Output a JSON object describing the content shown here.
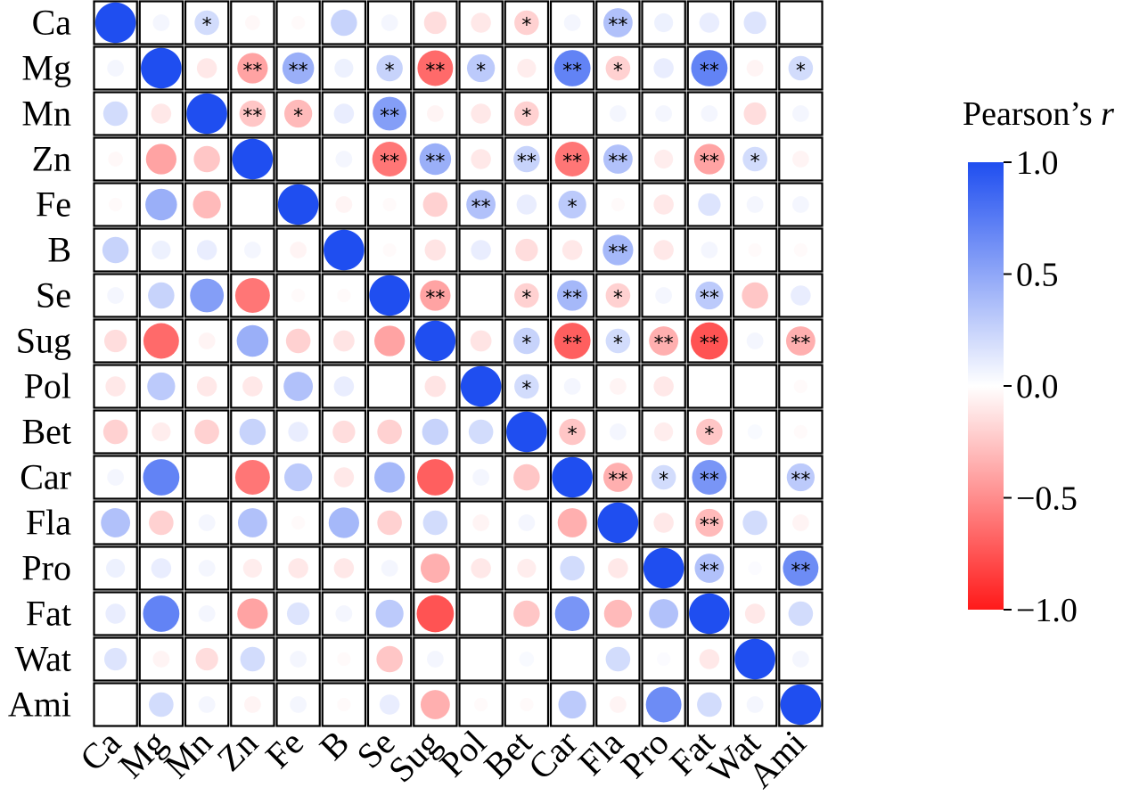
{
  "chart_data": {
    "type": "heatmap",
    "title": "",
    "xlabel": "",
    "ylabel": "",
    "variables": [
      "Ca",
      "Mg",
      "Mn",
      "Zn",
      "Fe",
      "B",
      "Se",
      "Sug",
      "Pol",
      "Bet",
      "Car",
      "Fla",
      "Pro",
      "Fat",
      "Wat",
      "Ami"
    ],
    "matrix": [
      [
        1.0,
        0.05,
        0.2,
        -0.03,
        -0.02,
        0.25,
        0.05,
        -0.15,
        -0.1,
        -0.2,
        0.05,
        0.35,
        0.08,
        0.1,
        0.15,
        0.0
      ],
      [
        0.05,
        1.0,
        -0.1,
        -0.4,
        0.45,
        0.08,
        0.25,
        -0.65,
        0.3,
        -0.08,
        0.7,
        -0.2,
        0.1,
        0.7,
        -0.05,
        0.2
      ],
      [
        0.2,
        -0.1,
        1.0,
        -0.25,
        -0.3,
        0.1,
        0.55,
        -0.05,
        -0.1,
        -0.2,
        0.0,
        0.05,
        0.05,
        0.05,
        -0.15,
        0.05
      ],
      [
        -0.03,
        -0.4,
        -0.25,
        1.0,
        0.0,
        0.05,
        -0.6,
        0.45,
        -0.1,
        0.25,
        -0.6,
        0.35,
        -0.08,
        -0.4,
        0.2,
        -0.05
      ],
      [
        -0.02,
        0.45,
        -0.3,
        0.0,
        1.0,
        -0.05,
        -0.02,
        -0.2,
        0.35,
        0.1,
        0.3,
        -0.02,
        -0.1,
        0.15,
        0.05,
        0.05
      ],
      [
        0.25,
        0.08,
        0.1,
        0.05,
        -0.05,
        1.0,
        -0.02,
        -0.12,
        0.1,
        -0.15,
        -0.1,
        0.4,
        -0.1,
        0.05,
        -0.02,
        -0.02
      ],
      [
        0.05,
        0.25,
        0.55,
        -0.6,
        -0.02,
        -0.02,
        1.0,
        -0.4,
        0.0,
        -0.2,
        0.4,
        -0.2,
        0.05,
        0.3,
        -0.25,
        0.1
      ],
      [
        -0.15,
        -0.65,
        -0.05,
        0.45,
        -0.2,
        -0.12,
        -0.4,
        1.0,
        -0.12,
        0.25,
        -0.7,
        0.2,
        -0.35,
        -0.75,
        0.05,
        -0.35
      ],
      [
        -0.1,
        0.3,
        -0.1,
        -0.1,
        0.35,
        0.1,
        0.0,
        -0.12,
        1.0,
        0.2,
        0.05,
        -0.05,
        -0.1,
        0.0,
        0.0,
        -0.02
      ],
      [
        -0.2,
        -0.08,
        -0.2,
        0.25,
        0.1,
        -0.15,
        -0.2,
        0.25,
        0.2,
        1.0,
        -0.25,
        0.05,
        -0.08,
        -0.25,
        0.03,
        -0.02
      ],
      [
        0.05,
        0.7,
        0.0,
        -0.6,
        0.3,
        -0.1,
        0.4,
        -0.7,
        0.05,
        -0.25,
        1.0,
        -0.35,
        0.2,
        0.6,
        0.0,
        0.3
      ],
      [
        0.35,
        -0.2,
        0.05,
        0.35,
        -0.02,
        0.4,
        -0.2,
        0.2,
        -0.05,
        0.05,
        -0.35,
        1.0,
        -0.1,
        -0.3,
        0.2,
        -0.05
      ],
      [
        0.08,
        0.1,
        0.05,
        -0.08,
        -0.1,
        -0.1,
        0.05,
        -0.35,
        -0.1,
        -0.08,
        0.2,
        -0.1,
        1.0,
        0.35,
        0.02,
        0.65
      ],
      [
        0.1,
        0.7,
        0.05,
        -0.4,
        0.15,
        0.05,
        0.3,
        -0.75,
        0.0,
        -0.25,
        0.6,
        -0.3,
        0.35,
        1.0,
        -0.1,
        0.2
      ],
      [
        0.15,
        -0.05,
        -0.15,
        0.2,
        0.05,
        -0.02,
        -0.25,
        0.05,
        0.0,
        0.03,
        0.0,
        0.2,
        0.02,
        -0.1,
        1.0,
        0.05
      ],
      [
        0.0,
        0.2,
        0.05,
        -0.05,
        0.05,
        -0.02,
        0.1,
        -0.35,
        -0.02,
        -0.02,
        0.3,
        -0.05,
        0.65,
        0.2,
        0.05,
        1.0
      ]
    ],
    "significance": [
      {
        "row": "Ca",
        "col": "Mn",
        "mark": "*"
      },
      {
        "row": "Ca",
        "col": "Bet",
        "mark": "*"
      },
      {
        "row": "Ca",
        "col": "Fla",
        "mark": "**"
      },
      {
        "row": "Mg",
        "col": "Zn",
        "mark": "**"
      },
      {
        "row": "Mg",
        "col": "Fe",
        "mark": "**"
      },
      {
        "row": "Mg",
        "col": "Se",
        "mark": "*"
      },
      {
        "row": "Mg",
        "col": "Sug",
        "mark": "**"
      },
      {
        "row": "Mg",
        "col": "Pol",
        "mark": "*"
      },
      {
        "row": "Mg",
        "col": "Car",
        "mark": "**"
      },
      {
        "row": "Mg",
        "col": "Fla",
        "mark": "*"
      },
      {
        "row": "Mg",
        "col": "Fat",
        "mark": "**"
      },
      {
        "row": "Mg",
        "col": "Ami",
        "mark": "*"
      },
      {
        "row": "Mn",
        "col": "Zn",
        "mark": "**"
      },
      {
        "row": "Mn",
        "col": "Fe",
        "mark": "*"
      },
      {
        "row": "Mn",
        "col": "Se",
        "mark": "**"
      },
      {
        "row": "Mn",
        "col": "Bet",
        "mark": "*"
      },
      {
        "row": "Zn",
        "col": "Se",
        "mark": "**"
      },
      {
        "row": "Zn",
        "col": "Sug",
        "mark": "**"
      },
      {
        "row": "Zn",
        "col": "Bet",
        "mark": "**"
      },
      {
        "row": "Zn",
        "col": "Car",
        "mark": "**"
      },
      {
        "row": "Zn",
        "col": "Fla",
        "mark": "**"
      },
      {
        "row": "Zn",
        "col": "Fat",
        "mark": "**"
      },
      {
        "row": "Zn",
        "col": "Wat",
        "mark": "*"
      },
      {
        "row": "Fe",
        "col": "Pol",
        "mark": "**"
      },
      {
        "row": "Fe",
        "col": "Car",
        "mark": "*"
      },
      {
        "row": "B",
        "col": "Fla",
        "mark": "**"
      },
      {
        "row": "Se",
        "col": "Sug",
        "mark": "**"
      },
      {
        "row": "Se",
        "col": "Bet",
        "mark": "*"
      },
      {
        "row": "Se",
        "col": "Car",
        "mark": "**"
      },
      {
        "row": "Se",
        "col": "Fla",
        "mark": "*"
      },
      {
        "row": "Se",
        "col": "Fat",
        "mark": "**"
      },
      {
        "row": "Sug",
        "col": "Bet",
        "mark": "*"
      },
      {
        "row": "Sug",
        "col": "Car",
        "mark": "**"
      },
      {
        "row": "Sug",
        "col": "Fla",
        "mark": "*"
      },
      {
        "row": "Sug",
        "col": "Pro",
        "mark": "**"
      },
      {
        "row": "Sug",
        "col": "Fat",
        "mark": "**"
      },
      {
        "row": "Sug",
        "col": "Ami",
        "mark": "**"
      },
      {
        "row": "Pol",
        "col": "Bet",
        "mark": "*"
      },
      {
        "row": "Bet",
        "col": "Car",
        "mark": "*"
      },
      {
        "row": "Bet",
        "col": "Fat",
        "mark": "*"
      },
      {
        "row": "Car",
        "col": "Fla",
        "mark": "**"
      },
      {
        "row": "Car",
        "col": "Pro",
        "mark": "*"
      },
      {
        "row": "Car",
        "col": "Fat",
        "mark": "**"
      },
      {
        "row": "Car",
        "col": "Ami",
        "mark": "**"
      },
      {
        "row": "Fla",
        "col": "Fat",
        "mark": "**"
      },
      {
        "row": "Pro",
        "col": "Fat",
        "mark": "**"
      },
      {
        "row": "Pro",
        "col": "Ami",
        "mark": "**"
      }
    ],
    "colorbar": {
      "title": "Pearson’s ",
      "title_italic": "r",
      "range": [
        -1.0,
        1.0
      ],
      "ticks": [
        1.0,
        0.5,
        0.0,
        -0.5,
        -1.0
      ],
      "tick_labels": [
        "1.0",
        "0.5",
        "0.0",
        "−0.5",
        "−1.0"
      ],
      "colors": {
        "negative": "#ff1a1a",
        "zero": "#ffffff",
        "positive": "#1f4ef0"
      }
    },
    "encoding": "circle size and color both encode r",
    "grid": true,
    "legend_position": "right"
  }
}
